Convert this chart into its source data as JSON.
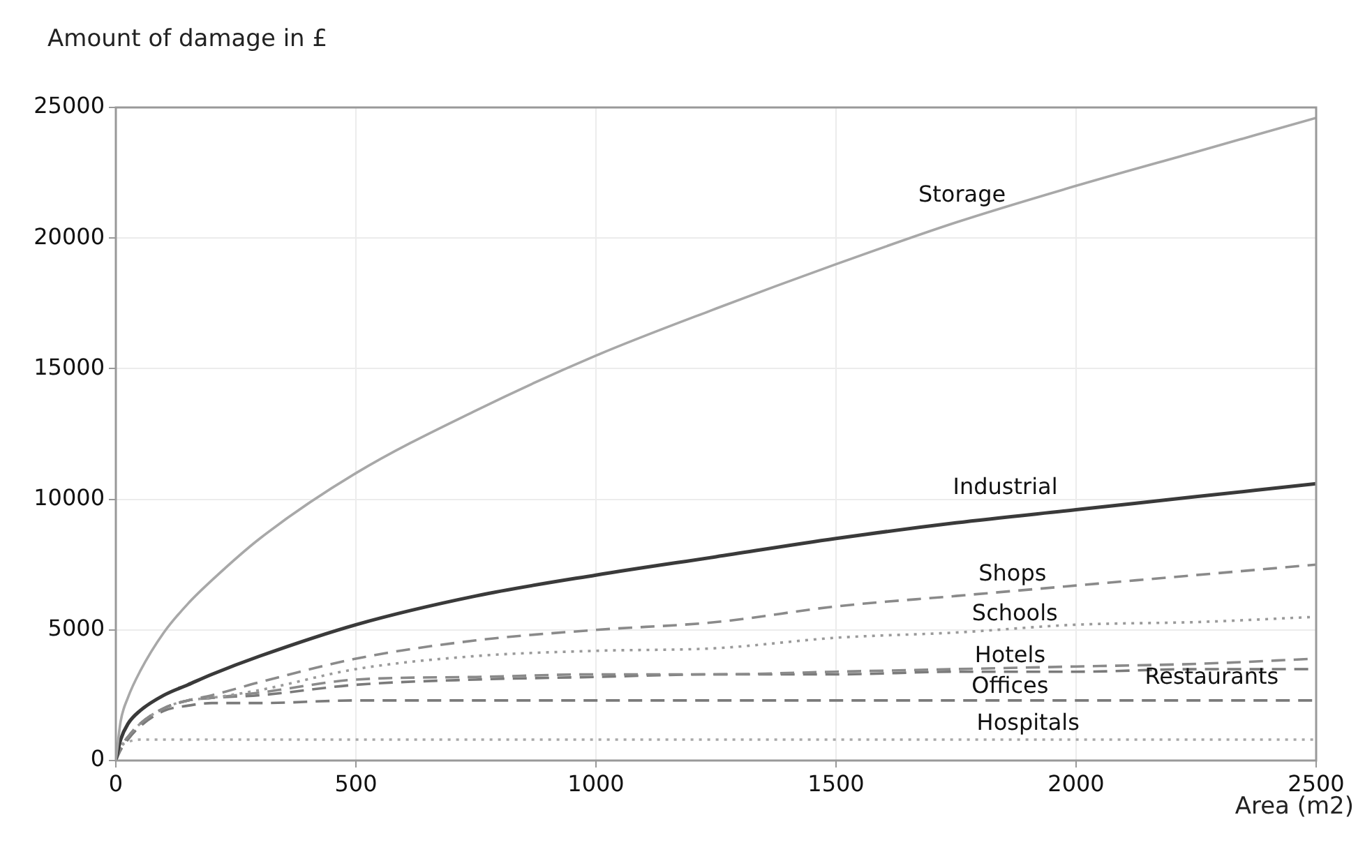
{
  "chart_data": {
    "type": "line",
    "ylabel": "Amount of damage in £",
    "xlabel": "Area (m2)",
    "x": [
      0,
      10,
      25,
      50,
      100,
      150,
      200,
      300,
      500,
      750,
      1000,
      1250,
      1500,
      1750,
      2000,
      2250,
      2500
    ],
    "series": [
      {
        "name": "Storage",
        "color": "#a8a8a8",
        "line_style": "solid",
        "values": [
          0,
          1500,
          2400,
          3400,
          4900,
          6000,
          6900,
          8500,
          11000,
          13400,
          15500,
          17300,
          19000,
          20600,
          22000,
          23300,
          24600
        ]
      },
      {
        "name": "Industrial",
        "color": "#3a3a3a",
        "line_style": "solid",
        "values": [
          0,
          800,
          1400,
          1900,
          2500,
          2900,
          3300,
          4000,
          5200,
          6300,
          7100,
          7800,
          8500,
          9100,
          9600,
          10100,
          10600
        ]
      },
      {
        "name": "Shops",
        "color": "#8a8a8a",
        "line_style": "dashed",
        "values": [
          0,
          500,
          900,
          1400,
          2000,
          2300,
          2500,
          3000,
          3900,
          4600,
          5000,
          5300,
          5900,
          6300,
          6700,
          7100,
          7500
        ]
      },
      {
        "name": "Schools",
        "color": "#9a9a9a",
        "line_style": "dotted",
        "values": [
          0,
          500,
          900,
          1400,
          2000,
          2300,
          2400,
          2700,
          3500,
          4000,
          4200,
          4300,
          4700,
          4900,
          5200,
          5300,
          5500
        ]
      },
      {
        "name": "Hotels",
        "color": "#8a8a8a",
        "line_style": "dashed",
        "values": [
          0,
          500,
          900,
          1400,
          2000,
          2300,
          2400,
          2600,
          3100,
          3200,
          3300,
          3300,
          3400,
          3500,
          3600,
          3700,
          3900
        ]
      },
      {
        "name": "Restaurants",
        "color": "#7a7a7a",
        "line_style": "dashed",
        "values": [
          0,
          500,
          900,
          1400,
          2000,
          2300,
          2400,
          2500,
          2900,
          3100,
          3200,
          3300,
          3300,
          3400,
          3400,
          3500,
          3500
        ]
      },
      {
        "name": "Offices",
        "color": "#7a7a7a",
        "line_style": "dashed",
        "values": [
          0,
          400,
          800,
          1300,
          1900,
          2100,
          2200,
          2200,
          2300,
          2300,
          2300,
          2300,
          2300,
          2300,
          2300,
          2300,
          2300
        ]
      },
      {
        "name": "Hospitals",
        "color": "#a8a8a8",
        "line_style": "dotted",
        "values": [
          0,
          500,
          700,
          800,
          800,
          800,
          800,
          800,
          800,
          800,
          800,
          800,
          800,
          800,
          800,
          800,
          800
        ]
      }
    ],
    "xlim": [
      0,
      2500
    ],
    "xticks": [
      0,
      500,
      1000,
      1500,
      2000,
      2500
    ],
    "ylim": [
      0,
      25000
    ],
    "yticks": [
      0,
      5000,
      10000,
      15000,
      20000,
      25000
    ],
    "grid": true,
    "legend": false,
    "marker": "none"
  }
}
